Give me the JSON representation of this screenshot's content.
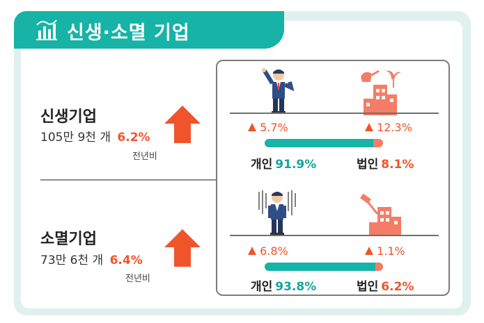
{
  "header": {
    "title": "신생·소멸 기업",
    "icon": "bar-chart-icon"
  },
  "colors": {
    "teal": "#16b3a6",
    "orange": "#f0542a",
    "salmon": "#f47d67",
    "mint": "#dff1ee"
  },
  "sections": [
    {
      "title": "신생기업",
      "count": "105만 9천 개",
      "change": "6.2%",
      "note": "전년비",
      "individual_change": "5.7%",
      "corporate_change": "12.3%",
      "individual_label": "개인",
      "individual_share": "91.9%",
      "individual_share_value": 91.9,
      "corporate_label": "법인",
      "corporate_share": "8.1%",
      "person_icon": "businessman-cheering-icon",
      "building_icon": "watering-building-icon"
    },
    {
      "title": "소멸기업",
      "count": "73만 6천 개",
      "change": "6.4%",
      "note": "전년비",
      "individual_change": "6.8%",
      "corporate_change": "1.1%",
      "individual_label": "개인",
      "individual_share": "93.8%",
      "individual_share_value": 93.8,
      "corporate_label": "법인",
      "corporate_share": "6.2%",
      "person_icon": "businessman-rain-icon",
      "building_icon": "hammer-building-icon"
    }
  ]
}
